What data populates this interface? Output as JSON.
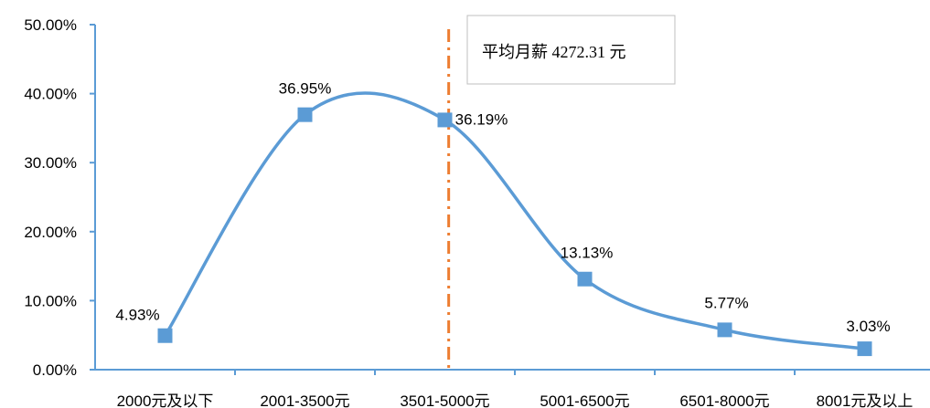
{
  "chart_data": {
    "type": "line",
    "title": "",
    "xlabel": "",
    "ylabel": "",
    "categories": [
      "2000元及以下",
      "2001-3500元",
      "3501-5000元",
      "5001-6500元",
      "6501-8000元",
      "8001元及以上"
    ],
    "series": [
      {
        "values": [
          4.93,
          36.95,
          36.19,
          13.13,
          5.77,
          3.03
        ],
        "labels": [
          "4.93%",
          "36.95%",
          "36.19%",
          "13.13%",
          "5.77%",
          "3.03%"
        ],
        "color": "#5b9bd5",
        "marker": "square",
        "smooth": true
      }
    ],
    "ylim": [
      0,
      50
    ],
    "yticks": [
      "0.00%",
      "10.00%",
      "20.00%",
      "30.00%",
      "40.00%",
      "50.00%"
    ],
    "grid": false,
    "legend": "none",
    "reference_line": {
      "value": 4272.31,
      "style": "dash-dot",
      "color": "#ed7d31"
    },
    "annotation": {
      "text": "平均月薪 4272.31 元"
    }
  }
}
